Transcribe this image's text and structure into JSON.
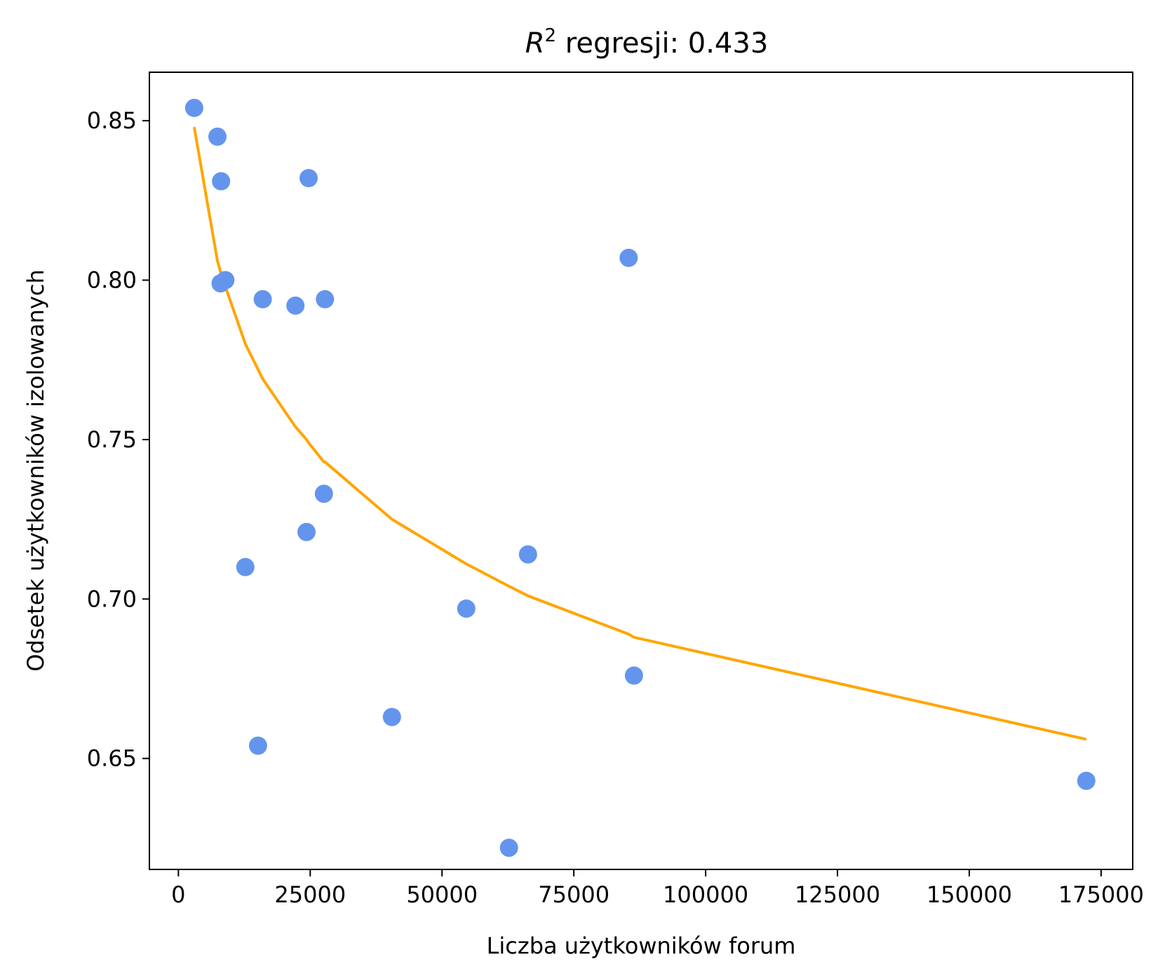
{
  "chart_data": {
    "type": "scatter",
    "title_prefix": "R",
    "title_superscript": "2",
    "title_text": " regresji: 0.433",
    "xlabel": "Liczba użytkowników forum",
    "ylabel": "Odsetek użytkowników izolowanych",
    "xlim": [
      -5500,
      181000
    ],
    "ylim": [
      0.6152,
      0.8652
    ],
    "x_ticks": [
      0,
      25000,
      50000,
      75000,
      100000,
      125000,
      150000,
      175000
    ],
    "x_tick_labels": [
      "0",
      "25000",
      "50000",
      "75000",
      "100000",
      "125000",
      "150000",
      "175000"
    ],
    "y_ticks": [
      0.65,
      0.7,
      0.75,
      0.8,
      0.85
    ],
    "y_tick_labels": [
      "0.65",
      "0.70",
      "0.75",
      "0.80",
      "0.85"
    ],
    "grid": false,
    "colors": {
      "points": "#6495ED",
      "fit_line": "#FFA500",
      "axes": "#000000"
    },
    "series": [
      {
        "type": "scatter",
        "points": [
          [
            3000,
            0.854
          ],
          [
            7400,
            0.845
          ],
          [
            8100,
            0.831
          ],
          [
            24700,
            0.832
          ],
          [
            85400,
            0.807
          ],
          [
            8000,
            0.799
          ],
          [
            8900,
            0.8
          ],
          [
            16000,
            0.794
          ],
          [
            22200,
            0.792
          ],
          [
            27800,
            0.794
          ],
          [
            27600,
            0.733
          ],
          [
            24300,
            0.721
          ],
          [
            12700,
            0.71
          ],
          [
            66300,
            0.714
          ],
          [
            54600,
            0.697
          ],
          [
            86400,
            0.676
          ],
          [
            40500,
            0.663
          ],
          [
            15100,
            0.654
          ],
          [
            62700,
            0.622
          ],
          [
            172200,
            0.643
          ]
        ]
      },
      {
        "type": "line",
        "points": [
          [
            3000,
            0.848
          ],
          [
            7400,
            0.806
          ],
          [
            8100,
            0.802
          ],
          [
            8900,
            0.798
          ],
          [
            12700,
            0.78
          ],
          [
            15100,
            0.772
          ],
          [
            16000,
            0.769
          ],
          [
            22200,
            0.754
          ],
          [
            24300,
            0.75
          ],
          [
            24700,
            0.749
          ],
          [
            27600,
            0.743
          ],
          [
            27800,
            0.743
          ],
          [
            40500,
            0.725
          ],
          [
            54600,
            0.711
          ],
          [
            62700,
            0.704
          ],
          [
            66300,
            0.701
          ],
          [
            85400,
            0.689
          ],
          [
            86400,
            0.688
          ],
          [
            172200,
            0.656
          ]
        ]
      }
    ]
  }
}
